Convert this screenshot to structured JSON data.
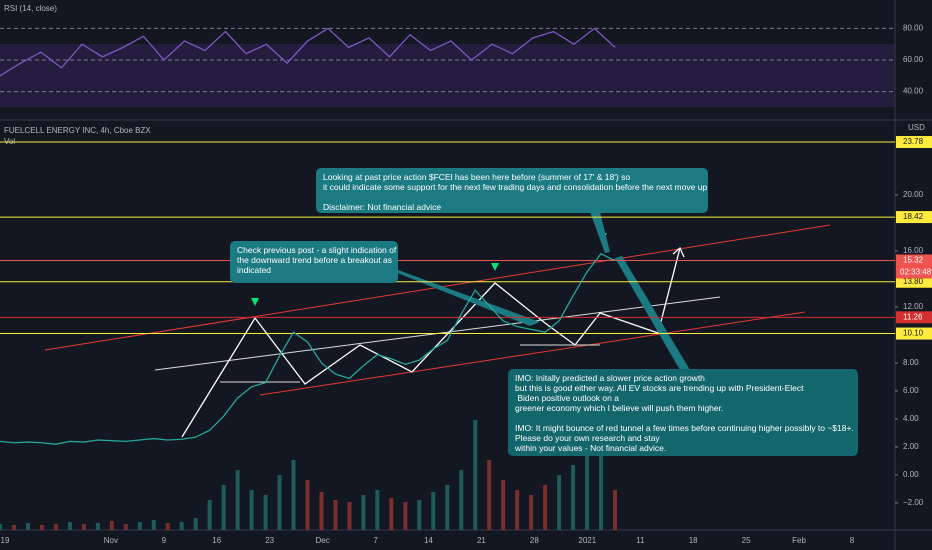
{
  "header": {
    "rsi_label": "RSI (14, close)",
    "symbol": "FUELCELL ENERGY INC, 4h, Cboe BZX",
    "volume_label": "Vol",
    "currency": "USD",
    "countdown": "02:33:48"
  },
  "chart_data": {
    "type": "line",
    "close": {
      "color": "#26a69a",
      "values": [
        2.4,
        2.3,
        2.35,
        2.3,
        2.2,
        2.4,
        2.35,
        2.5,
        2.45,
        2.4,
        2.5,
        2.6,
        2.5,
        2.55,
        2.7,
        3.2,
        4.2,
        5.5,
        6.3,
        6.6,
        8.5,
        10.2,
        9.5,
        8.0,
        7.2,
        6.9,
        7.8,
        8.6,
        8.3,
        7.9,
        8.2,
        9.0,
        9.6,
        11.5,
        13.2,
        12.1,
        11.0,
        10.6,
        10.4,
        10.2,
        11.0,
        12.8,
        14.5,
        15.8,
        15.3
      ]
    },
    "volume": [
      6,
      5,
      7,
      5,
      6,
      8,
      6,
      7,
      9,
      6,
      8,
      10,
      7,
      8,
      12,
      30,
      45,
      60,
      40,
      35,
      55,
      70,
      50,
      38,
      30,
      28,
      35,
      40,
      32,
      28,
      30,
      38,
      45,
      60,
      110,
      70,
      50,
      40,
      35,
      45,
      55,
      65,
      80,
      90,
      40
    ],
    "rsi": {
      "color": "#7e57c2",
      "values": [
        50,
        58,
        65,
        55,
        70,
        62,
        68,
        75,
        60,
        72,
        66,
        78,
        64,
        70,
        58,
        72,
        80,
        68,
        74,
        62,
        76,
        66,
        72,
        60,
        70,
        64,
        74,
        78,
        70,
        80,
        68
      ],
      "ylim": [
        22,
        98
      ],
      "yticks": [
        {
          "value": 80,
          "label": "80.00"
        },
        {
          "value": 60,
          "label": "60.00"
        },
        {
          "value": 40,
          "label": "40.00"
        }
      ]
    },
    "ylim": [
      -3.93,
      25.21
    ],
    "yticks": [
      {
        "value": 20,
        "label": "20.00"
      },
      {
        "value": 16,
        "label": "16.00"
      },
      {
        "value": 12,
        "label": "12.00"
      },
      {
        "value": 8,
        "label": "8.00"
      },
      {
        "value": 6,
        "label": "6.00"
      },
      {
        "value": 4,
        "label": "4.00"
      },
      {
        "value": 2,
        "label": "2.00"
      },
      {
        "value": 0,
        "label": "0.00"
      },
      {
        "value": -2,
        "label": "−2.00"
      }
    ],
    "levels": [
      {
        "value": 23.78,
        "label": "23.78",
        "color": "#ffeb3b"
      },
      {
        "value": 18.42,
        "label": "18.42",
        "color": "#ffeb3b"
      },
      {
        "value": 15.32,
        "label": "15.32",
        "color": "#ef5350"
      },
      {
        "value": 13.8,
        "label": "13.80",
        "color": "#ffeb3b"
      },
      {
        "value": 11.26,
        "label": "11.26",
        "color": "#d32f2f"
      },
      {
        "value": 10.1,
        "label": "10.10",
        "color": "#ffeb3b"
      }
    ],
    "categories": [
      "19",
      null,
      "Nov",
      "9",
      "16",
      "23",
      "Dec",
      "7",
      "14",
      "21",
      "28",
      "2021",
      "11",
      "18",
      "25",
      "Feb",
      "8"
    ],
    "annotations": [
      {
        "lines": [
          "Looking at past price action $FCEl has been here before (summer of 17' & 18') so",
          "it could indicate some support for the next few trading days and consolidation before the next move up",
          "",
          "Disclaimer: Not financial advice"
        ]
      },
      {
        "lines": [
          "Check previous post - a slight indication of",
          "the downward trend before a breakout as",
          "indicated"
        ]
      },
      {
        "lines": [
          "IMO: Initally predicted a slower price action growth",
          "but this is good either way. All EV stocks are trending up with President-Elect",
          " Biden positive outlook on a",
          "greener economy which I believe will push them higher.",
          "",
          "IMO: It might bounce of red tunnel a few times before continuing higher possibly to ~$18+.",
          "Please do your own research and stay",
          "within your values - Not financial advice."
        ]
      }
    ]
  }
}
